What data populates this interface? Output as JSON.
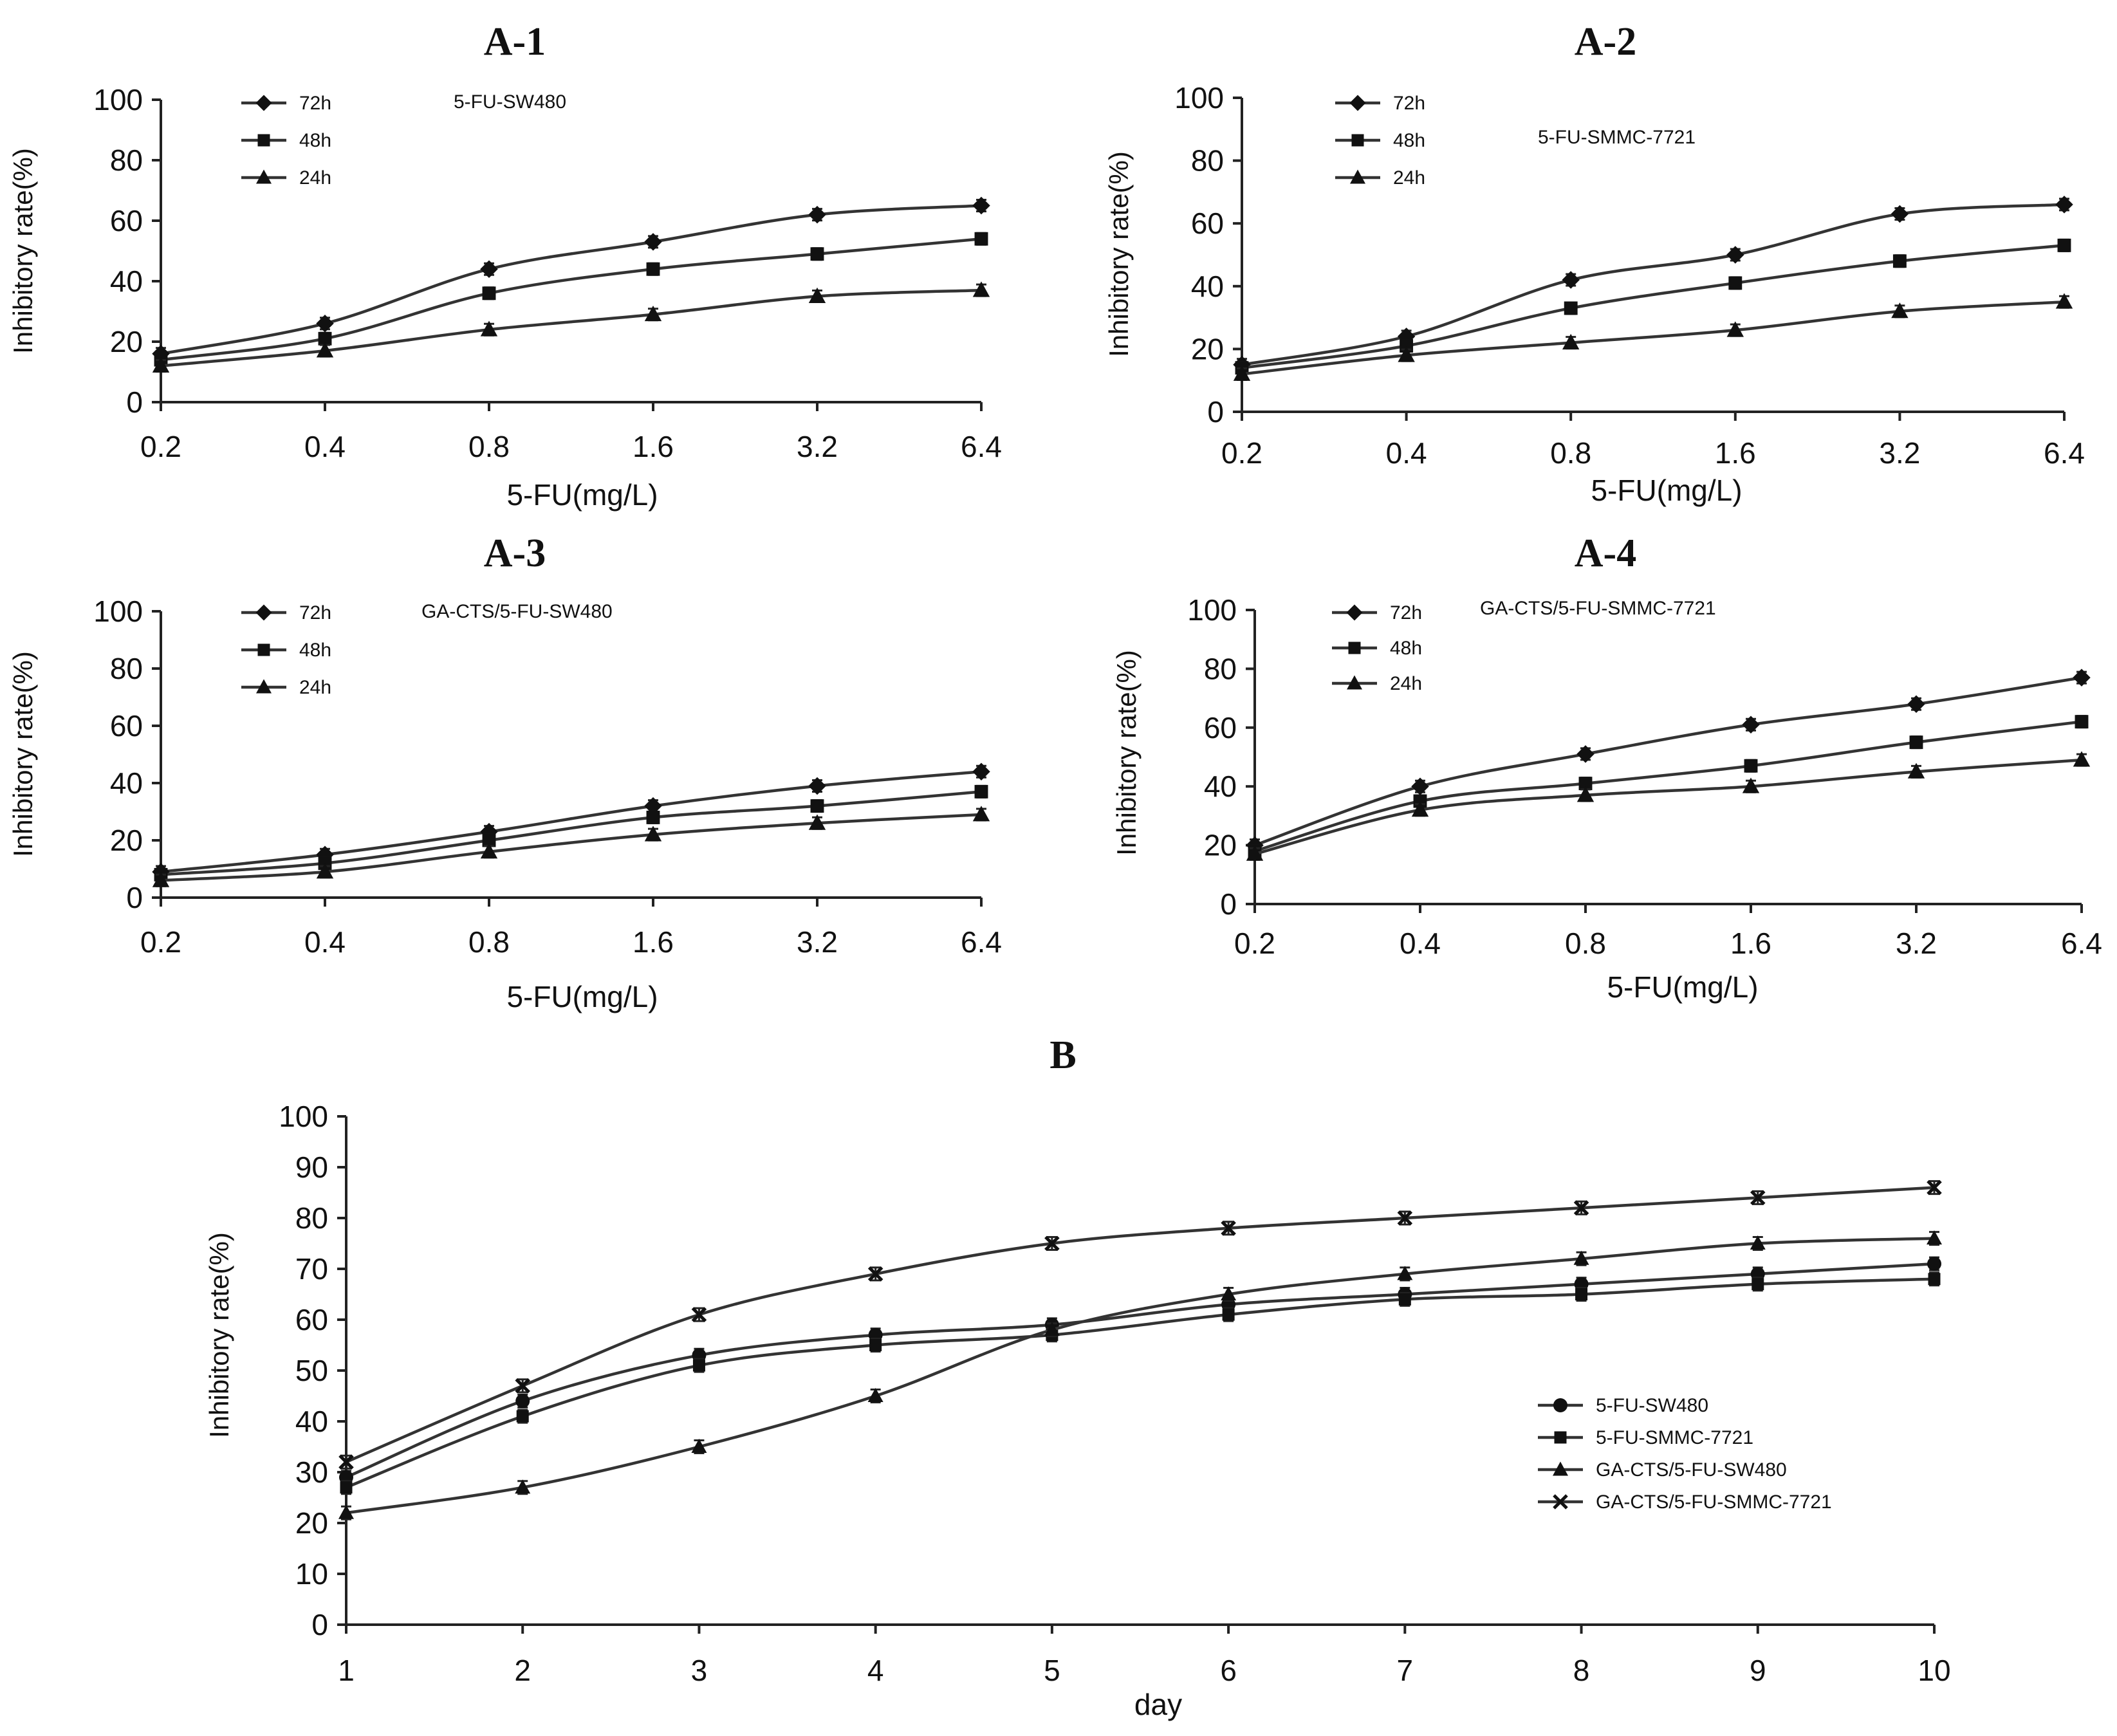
{
  "figure": {
    "panel_titles": [
      "A-1",
      "A-2",
      "A-3",
      "A-4",
      "B"
    ]
  },
  "chart_data": [
    {
      "id": "A-1",
      "type": "line",
      "title": "A-1",
      "annotation": "5-FU-SW480",
      "xlabel": "5-FU(mg/L)",
      "ylabel": "Inhibitory rate(%)",
      "categories": [
        "0.2",
        "0.4",
        "0.8",
        "1.6",
        "3.2",
        "6.4"
      ],
      "ylim": [
        0,
        100
      ],
      "yticks": [
        "0",
        "20",
        "40",
        "60",
        "80",
        "100"
      ],
      "legend_position": "top-left",
      "series": [
        {
          "name": "72h",
          "marker": "diamond",
          "values": [
            16,
            26,
            44,
            53,
            62,
            65
          ]
        },
        {
          "name": "48h",
          "marker": "square",
          "values": [
            14,
            21,
            36,
            44,
            49,
            54
          ]
        },
        {
          "name": "24h",
          "marker": "triangle",
          "values": [
            12,
            17,
            24,
            29,
            35,
            37
          ]
        }
      ]
    },
    {
      "id": "A-2",
      "type": "line",
      "title": "A-2",
      "annotation": "5-FU-SMMC-7721",
      "xlabel": "5-FU(mg/L)",
      "ylabel": "Inhibitory rate(%)",
      "categories": [
        "0.2",
        "0.4",
        "0.8",
        "1.6",
        "3.2",
        "6.4"
      ],
      "ylim": [
        0,
        100
      ],
      "yticks": [
        "0",
        "20",
        "40",
        "60",
        "80",
        "100"
      ],
      "legend_position": "top-left",
      "series": [
        {
          "name": "72h",
          "marker": "diamond",
          "values": [
            15,
            24,
            42,
            50,
            63,
            66
          ]
        },
        {
          "name": "48h",
          "marker": "square",
          "values": [
            14,
            21,
            33,
            41,
            48,
            53
          ]
        },
        {
          "name": "24h",
          "marker": "triangle",
          "values": [
            12,
            18,
            22,
            26,
            32,
            35
          ]
        }
      ]
    },
    {
      "id": "A-3",
      "type": "line",
      "title": "A-3",
      "annotation": "GA-CTS/5-FU-SW480",
      "xlabel": "5-FU(mg/L)",
      "ylabel": "Inhibitory rate(%)",
      "categories": [
        "0.2",
        "0.4",
        "0.8",
        "1.6",
        "3.2",
        "6.4"
      ],
      "ylim": [
        0,
        100
      ],
      "yticks": [
        "0",
        "20",
        "40",
        "60",
        "80",
        "100"
      ],
      "legend_position": "top-left",
      "series": [
        {
          "name": "72h",
          "marker": "diamond",
          "values": [
            9,
            15,
            23,
            32,
            39,
            44
          ]
        },
        {
          "name": "48h",
          "marker": "square",
          "values": [
            8,
            12,
            20,
            28,
            32,
            37
          ]
        },
        {
          "name": "24h",
          "marker": "triangle",
          "values": [
            6,
            9,
            16,
            22,
            26,
            29
          ]
        }
      ]
    },
    {
      "id": "A-4",
      "type": "line",
      "title": "A-4",
      "annotation": "GA-CTS/5-FU-SMMC-7721",
      "xlabel": "5-FU(mg/L)",
      "ylabel": "Inhibitory rate(%)",
      "categories": [
        "0.2",
        "0.4",
        "0.8",
        "1.6",
        "3.2",
        "6.4"
      ],
      "ylim": [
        0,
        100
      ],
      "yticks": [
        "0",
        "20",
        "40",
        "60",
        "80",
        "100"
      ],
      "legend_position": "top-left",
      "series": [
        {
          "name": "72h",
          "marker": "diamond",
          "values": [
            20,
            40,
            51,
            61,
            68,
            77
          ]
        },
        {
          "name": "48h",
          "marker": "square",
          "values": [
            18,
            35,
            41,
            47,
            55,
            62
          ]
        },
        {
          "name": "24h",
          "marker": "triangle",
          "values": [
            17,
            32,
            37,
            40,
            45,
            49
          ]
        }
      ]
    },
    {
      "id": "B",
      "type": "line",
      "title": "B",
      "xlabel": "day",
      "ylabel": "Inhibitory rate(%)",
      "categories": [
        "1",
        "2",
        "3",
        "4",
        "5",
        "6",
        "7",
        "8",
        "9",
        "10"
      ],
      "ylim": [
        0,
        100
      ],
      "yticks": [
        "0",
        "10",
        "20",
        "30",
        "40",
        "50",
        "60",
        "70",
        "80",
        "90",
        "100"
      ],
      "legend_position": "bottom-right",
      "series": [
        {
          "name": "5-FU-SW480",
          "marker": "circle",
          "values": [
            29,
            44,
            53,
            57,
            59,
            63,
            65,
            67,
            69,
            71
          ]
        },
        {
          "name": "5-FU-SMMC-7721",
          "marker": "square",
          "values": [
            27,
            41,
            51,
            55,
            57,
            61,
            64,
            65,
            67,
            68
          ]
        },
        {
          "name": "GA-CTS/5-FU-SW480",
          "marker": "triangle",
          "values": [
            22,
            27,
            35,
            45,
            58,
            65,
            69,
            72,
            75,
            76
          ]
        },
        {
          "name": "GA-CTS/5-FU-SMMC-7721",
          "marker": "star",
          "values": [
            32,
            47,
            61,
            69,
            75,
            78,
            80,
            82,
            84,
            86
          ]
        }
      ]
    }
  ]
}
